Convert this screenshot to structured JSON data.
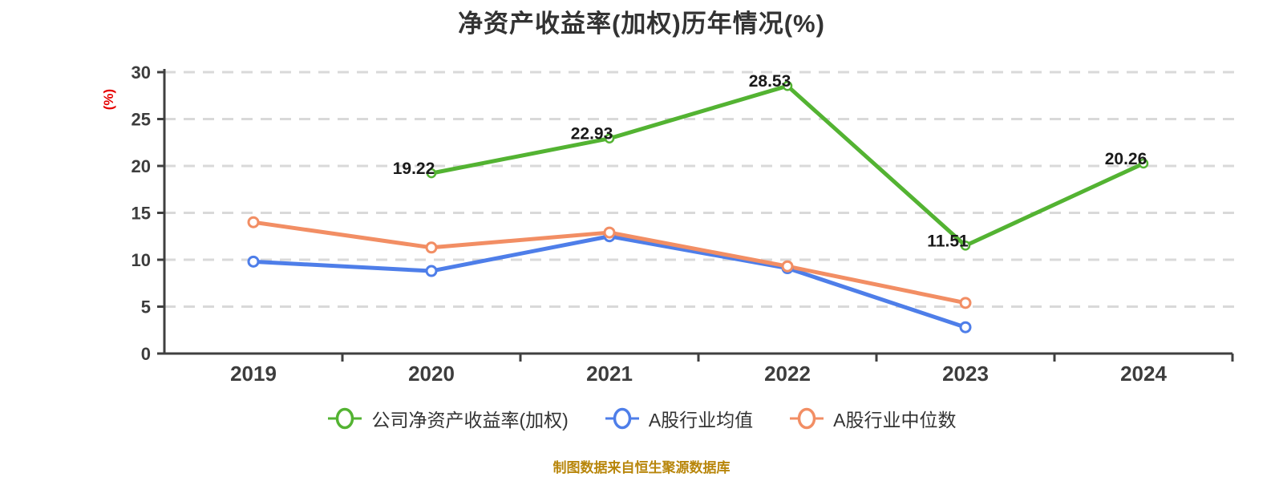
{
  "title": {
    "text": "净资产收益率(加权)历年情况(%)"
  },
  "footer": {
    "text": "制图数据来自恒生聚源数据库",
    "color": "#b8860b"
  },
  "colors": {
    "axis": "#3f3f3f",
    "grid": "#d9d9d9",
    "tick_label": "#3d3d3d",
    "data_label": "#1a1a1a",
    "y_unit_label": "#e60000"
  },
  "chart_data": {
    "type": "line",
    "title": "净资产收益率(加权)历年情况(%)",
    "categories": [
      "2019",
      "2020",
      "2021",
      "2022",
      "2023",
      "2024"
    ],
    "series": [
      {
        "id": "company-roe",
        "name": "公司净资产收益率(加权)",
        "color": "#53b332",
        "values": [
          null,
          19.22,
          22.93,
          28.53,
          11.51,
          20.26
        ],
        "labels_shown": true,
        "marker_radius": 5,
        "marker_stroke": 2.5
      },
      {
        "id": "industry-mean",
        "name": "A股行业均值",
        "color": "#4e7ee9",
        "values": [
          9.8,
          8.8,
          12.5,
          9.1,
          2.8,
          null
        ],
        "labels_shown": false,
        "marker_radius": 6,
        "marker_stroke": 3
      },
      {
        "id": "industry-median",
        "name": "A股行业中位数",
        "color": "#f28e64",
        "values": [
          14.0,
          11.3,
          12.9,
          9.3,
          5.4,
          null
        ],
        "labels_shown": false,
        "marker_radius": 6,
        "marker_stroke": 3
      }
    ],
    "xlabel": "",
    "ylabel": "(%)",
    "ylim": [
      0,
      30
    ],
    "ytick_step": 5,
    "yticks": [
      "0",
      "5",
      "10",
      "15",
      "20",
      "25",
      "30"
    ],
    "grid": "horizontal-dashed",
    "legend_position": "bottom"
  }
}
